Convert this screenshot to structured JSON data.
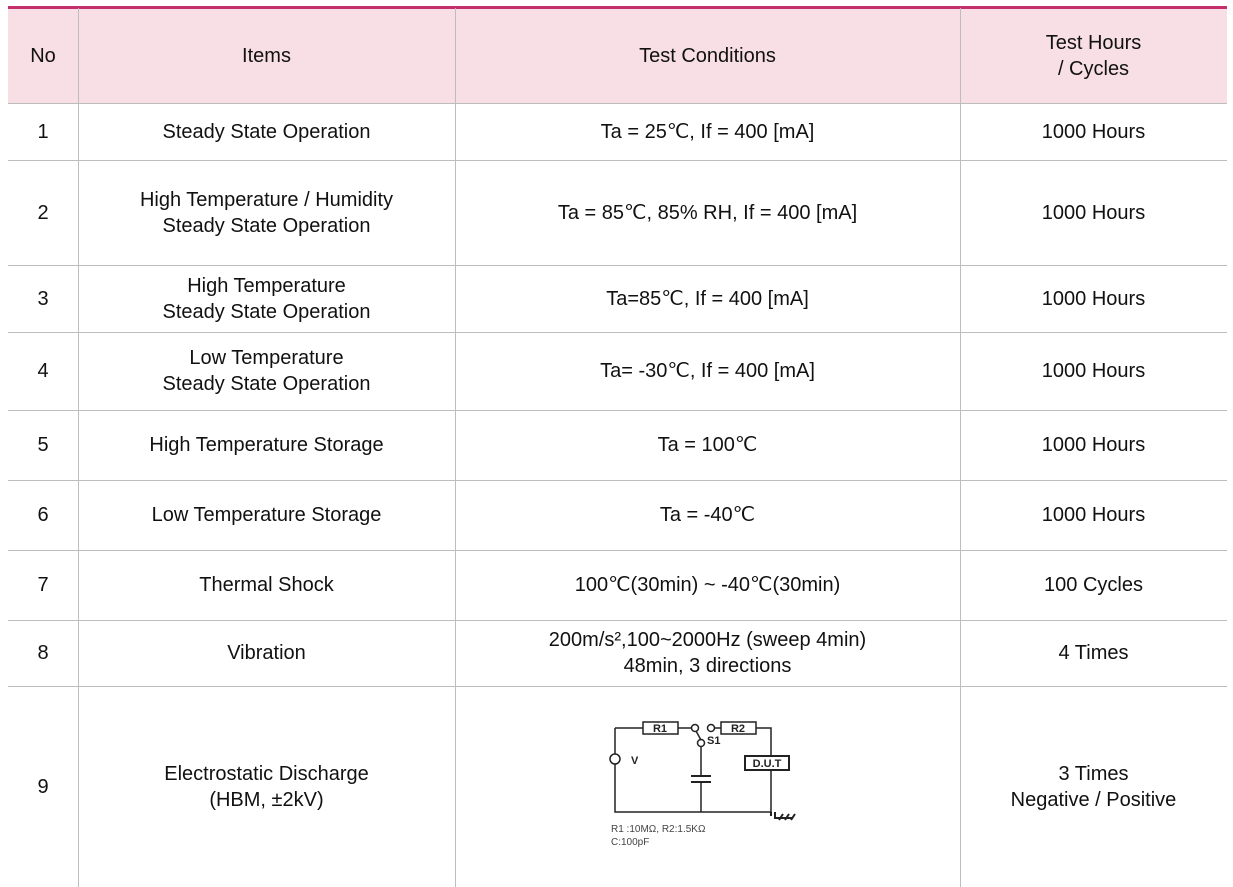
{
  "table": {
    "header": [
      "No",
      "Items",
      "Test Conditions",
      [
        "Test Hours",
        "/ Cycles"
      ]
    ],
    "rows": [
      [
        "1",
        [
          "Steady State Operation"
        ],
        [
          "Ta = 25℃, If = 400 [mA]"
        ],
        [
          "1000 Hours"
        ]
      ],
      [
        "2",
        [
          "High Temperature /  Humidity",
          "Steady State Operation"
        ],
        [
          "Ta = 85℃,  85% RH, If = 400 [mA]"
        ],
        [
          "1000 Hours"
        ]
      ],
      [
        "3",
        [
          "High Temperature",
          "Steady State Operation"
        ],
        [
          "Ta=85℃, If = 400 [mA]"
        ],
        [
          "1000 Hours"
        ]
      ],
      [
        "4",
        [
          "Low Temperature",
          "Steady State Operation"
        ],
        [
          "Ta= -30℃, If = 400 [mA]"
        ],
        [
          "1000 Hours"
        ]
      ],
      [
        "5",
        [
          "High Temperature Storage"
        ],
        [
          "Ta = 100℃"
        ],
        [
          "1000 Hours"
        ]
      ],
      [
        "6",
        [
          "Low Temperature Storage"
        ],
        [
          "Ta = -40℃"
        ],
        [
          "1000 Hours"
        ]
      ],
      [
        "7",
        [
          "Thermal Shock"
        ],
        [
          "100℃(30min) ~ -40℃(30min)"
        ],
        [
          "100 Cycles"
        ]
      ],
      [
        "8",
        [
          "Vibration"
        ],
        [
          "200m/s²,100~2000Hz (sweep 4min)",
          "48min, 3 directions"
        ],
        [
          "4 Times"
        ]
      ],
      [
        "9",
        [
          "Electrostatic Discharge",
          "(HBM, ±2kV)"
        ],
        [],
        [
          "3 Times",
          "Negative / Positive"
        ]
      ]
    ],
    "diagram": {
      "r1": "R1",
      "r2": "R2",
      "s1": "S1",
      "v": "V",
      "dut": "D.U.T",
      "note": [
        "R1 :10MΩ,  R2:1.5KΩ",
        "C:100pF"
      ]
    }
  }
}
